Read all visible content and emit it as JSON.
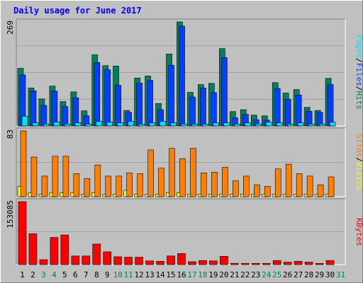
{
  "page": {
    "title": "Daily usage for June 2017"
  },
  "colors": {
    "background": "#c0c0c0",
    "plot_bg": "#c0c0c0",
    "title": "#0000ff",
    "hits": "#00805c",
    "files": "#0040ff",
    "pages": "#00e0ff",
    "visits": "#ffff00",
    "sites": "#ff8000",
    "kbytes": "#ff0000",
    "weekend_label": "#00805c",
    "weekday_label": "#000000",
    "separator": "#000000"
  },
  "chart_data": {
    "type": "bar",
    "title": "Daily usage for June 2017",
    "categories": [
      "1",
      "2",
      "3",
      "4",
      "5",
      "6",
      "7",
      "8",
      "9",
      "10",
      "11",
      "12",
      "13",
      "14",
      "15",
      "16",
      "17",
      "18",
      "19",
      "20",
      "21",
      "22",
      "23",
      "24",
      "25",
      "26",
      "27",
      "28",
      "29",
      "30",
      "31"
    ],
    "weekend_days": [
      "3",
      "4",
      "10",
      "11",
      "17",
      "18",
      "24",
      "25",
      "31"
    ],
    "panels": [
      {
        "id": "hits-files-pages",
        "max_label": "269",
        "ymax": 269,
        "legend": [
          {
            "name": "Pages",
            "color": "#00e0ff"
          },
          {
            "name": "Files",
            "color": "#0040ff"
          },
          {
            "name": "Hits",
            "color": "#00805c"
          }
        ],
        "separator": "/",
        "series": [
          {
            "name": "Hits",
            "values": [
              149,
              98,
              70,
              103,
              63,
              88,
              39,
              184,
              156,
              155,
              40,
              124,
              129,
              58,
              186,
              269,
              87,
              107,
              110,
              200,
              37,
              42,
              28,
              26,
              112,
              85,
              94,
              48,
              40,
              123,
              0
            ]
          },
          {
            "name": "Files",
            "values": [
              132,
              91,
              53,
              90,
              50,
              73,
              26,
              164,
              145,
              105,
              35,
              111,
              118,
              42,
              157,
              258,
              75,
              98,
              86,
              177,
              21,
              30,
              16,
              15,
              97,
              69,
              80,
              38,
              35,
              107,
              0
            ]
          },
          {
            "name": "Pages",
            "values": [
              25,
              8,
              5,
              10,
              5,
              8,
              5,
              12,
              10,
              8,
              12,
              5,
              8,
              12,
              8,
              5,
              5,
              5,
              8,
              8,
              5,
              8,
              5,
              10,
              8,
              5,
              8,
              5,
              5,
              10,
              0
            ]
          }
        ]
      },
      {
        "id": "visits-sites",
        "max_label": "83",
        "ymax": 83,
        "legend": [
          {
            "name": "Sites",
            "color": "#ff8000"
          },
          {
            "name": "Visits",
            "color": "#ffff00"
          }
        ],
        "separator": "/",
        "series": [
          {
            "name": "Visits",
            "values": [
              13,
              5,
              3,
              5,
              5,
              5,
              3,
              5,
              3,
              3,
              8,
              3,
              3,
              3,
              5,
              5,
              3,
              3,
              3,
              3,
              3,
              3,
              3,
              3,
              3,
              3,
              3,
              3,
              3,
              3,
              0
            ]
          },
          {
            "name": "Sites",
            "values": [
              83,
              50,
              26,
              51,
              51,
              29,
              23,
              40,
              26,
              26,
              30,
              29,
              59,
              36,
              61,
              48,
              61,
              30,
              31,
              37,
              20,
              26,
              15,
              13,
              35,
              41,
              29,
              26,
              15,
              25,
              0
            ]
          }
        ]
      },
      {
        "id": "kbytes",
        "max_label": "153085",
        "ymax": 153085,
        "legend": [
          {
            "name": "KBytes",
            "color": "#ff0000"
          }
        ],
        "series": [
          {
            "name": "KBytes",
            "values": [
              153085,
              75000,
              12000,
              66000,
              72000,
              21000,
              21000,
              50000,
              31000,
              19000,
              18000,
              18000,
              9000,
              8000,
              21000,
              27000,
              7000,
              10000,
              9000,
              20000,
              3000,
              3000,
              3000,
              3000,
              10000,
              6000,
              8000,
              6000,
              3000,
              10000,
              0
            ]
          }
        ]
      }
    ]
  }
}
